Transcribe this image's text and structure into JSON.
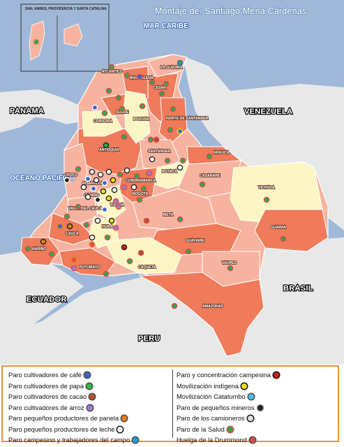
{
  "title": "Montaje de: Santiago Mena Cárdenas",
  "inset_label": "SAN. ANRES, PROVIDENCIA Y SANTA CATALINA",
  "seas": [
    "MAR CARIBE",
    "OCEANO PACIFICO"
  ],
  "countries": [
    "PANAMA",
    "VENEZUELA",
    "ECUADOR",
    "BRASIL",
    "PERU"
  ],
  "departments": [
    "ATLANTICO",
    "LA GUAJIRA",
    "MAGDALENA",
    "CESAR",
    "SUCRE",
    "CORDOBA",
    "BOLIVAR",
    "NORTE DE SANTANDER",
    "ANTIOQUIA",
    "SANTANDER",
    "ARAUCA",
    "CHOCO",
    "RISARALDA",
    "CUNDINAMARCA",
    "BOYACA",
    "CASANARE",
    "VICHADA",
    "QUINDIO",
    "TOLIMA",
    "BOGOTA",
    "VALLE DEL CAUCA",
    "META",
    "GUAINIA",
    "CAUCA",
    "HUILA",
    "GUAVIARE",
    "NARIÑO",
    "PUTUMAYO",
    "CAQUETA",
    "VAUPES",
    "AMAZONAS"
  ],
  "colors": {
    "sea": "#9fb8d8",
    "neighbor": "#e8e8e8",
    "colombia_red": "#ef7b5a",
    "colombia_salmon": "#f6b4a0",
    "colombia_yellow": "#fbf6c4"
  },
  "legend": {
    "left": [
      {
        "label": "Paro cultivadores de café",
        "color": "#3a67c7"
      },
      {
        "label": "Paro cultivadores de papa",
        "color": "#39b54a"
      },
      {
        "label": "Paro cultivadores de cacao",
        "color": "#b5532e"
      },
      {
        "label": "Paro cultivadores de arroz",
        "color": "#9b7fc4"
      },
      {
        "label": "Paro pequeños productores de panela",
        "color": "#e97b12"
      },
      {
        "label": "Paro pequeños productores de leche",
        "color": "#ffffff"
      },
      {
        "label": "Paro campesino y trabajadores del campo",
        "color": "#19a0e0"
      }
    ],
    "right": [
      {
        "label": "Paro y concentración campesina",
        "color": "#d91e1e"
      },
      {
        "label": "Movilización indígena",
        "color": "#f3e01a"
      },
      {
        "label": "Movilización Catatumbo",
        "color": "#49c3e8"
      },
      {
        "label": "Paro de pequeños mineros",
        "color": "#222222"
      },
      {
        "label": "Paro de los camioneros",
        "color": "#dddddd"
      },
      {
        "label": "Paro de la Salud",
        "color": "#2ea84a"
      },
      {
        "label": "Huelga de la Drummond",
        "color": "#e04a4a"
      }
    ]
  }
}
